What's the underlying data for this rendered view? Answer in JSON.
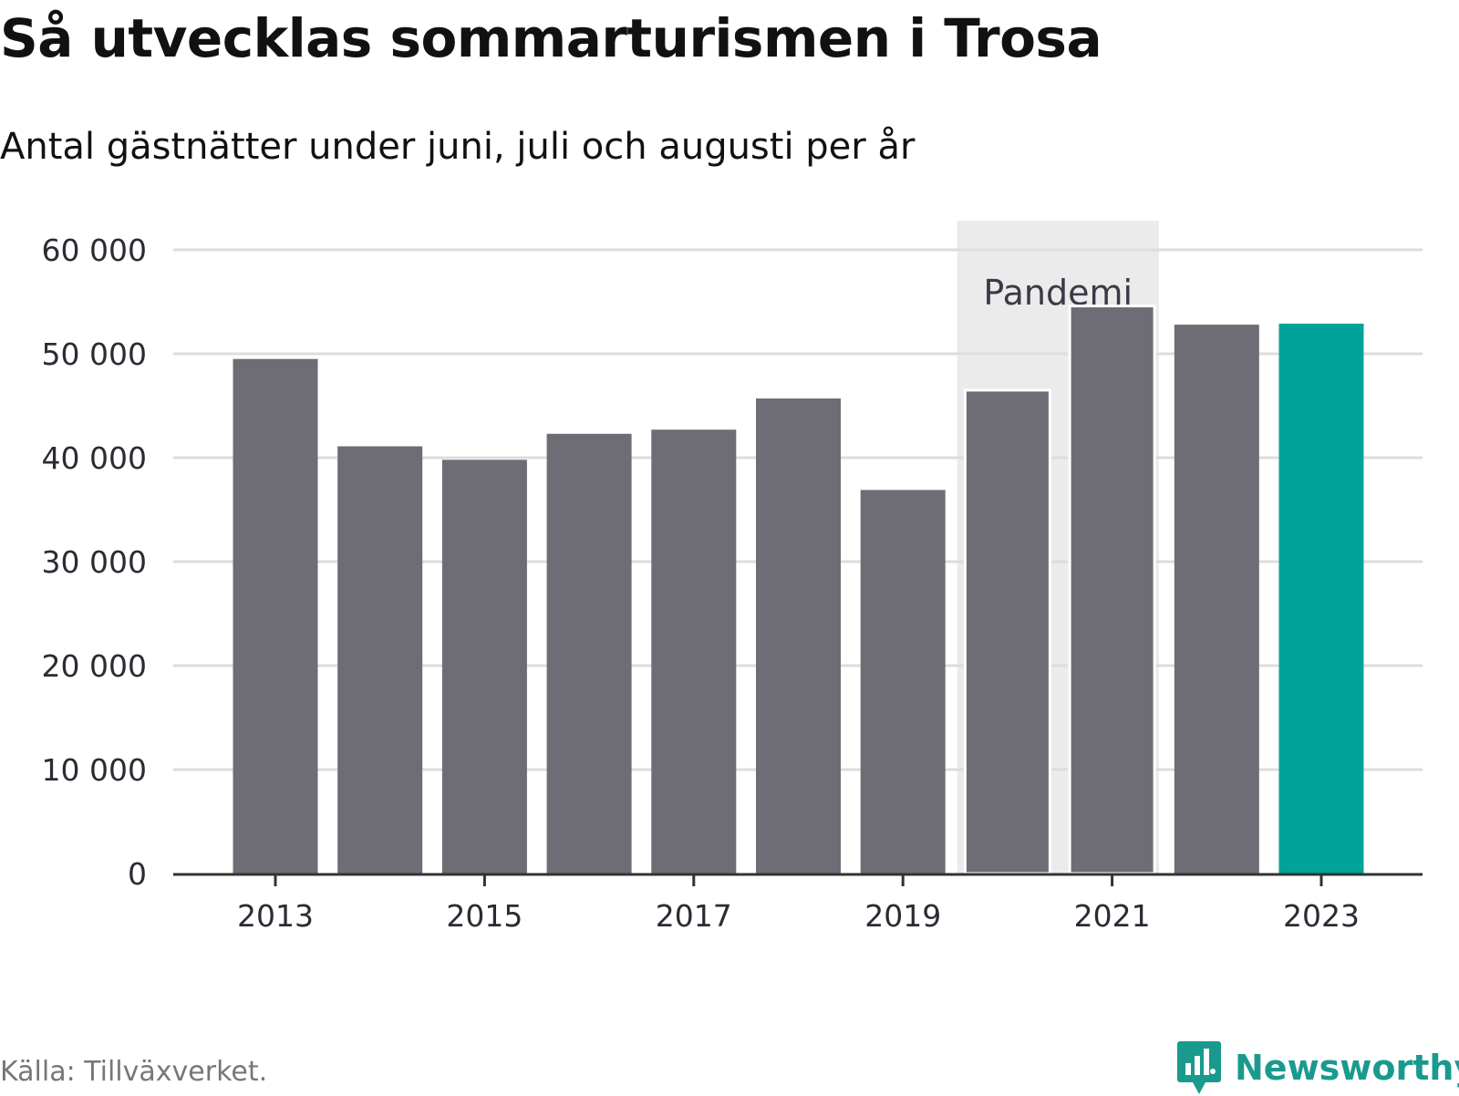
{
  "header": {
    "title": "Så utvecklas sommarturismen i Trosa",
    "subtitle": "Antal gästnätter under juni, juli och augusti per år"
  },
  "footer": {
    "source": "Källa: Tillväxverket.",
    "brand": "Newsworthy"
  },
  "colors": {
    "bar": "#6e6d75",
    "highlight": "#00a39a",
    "band": "#ebebeb",
    "grid": "#dddddd",
    "axis": "#333333",
    "brand": "#1a9a8e"
  },
  "icons": {
    "brand_logo": "bar-chart-speech-bubble-icon"
  },
  "chart_data": {
    "type": "bar",
    "title": "Så utvecklas sommarturismen i Trosa",
    "subtitle": "Antal gästnätter under juni, juli och augusti per år",
    "categories": [
      "2013",
      "2014",
      "2015",
      "2016",
      "2017",
      "2018",
      "2019",
      "2020",
      "2021",
      "2022",
      "2023"
    ],
    "values": [
      49500,
      41100,
      39800,
      42300,
      42700,
      45700,
      36900,
      46500,
      54600,
      52800,
      52900
    ],
    "highlight_category": "2023",
    "x_tick_labels": [
      "2013",
      "2015",
      "2017",
      "2019",
      "2021",
      "2023"
    ],
    "y_ticks": [
      0,
      10000,
      20000,
      30000,
      40000,
      50000,
      60000
    ],
    "y_tick_labels": [
      "0",
      "10 000",
      "20 000",
      "30 000",
      "40 000",
      "50 000",
      "60 000"
    ],
    "ylim": [
      0,
      60000
    ],
    "grid": true,
    "annotation": {
      "label": "Pandemi",
      "from": "2020",
      "to": "2021"
    }
  }
}
